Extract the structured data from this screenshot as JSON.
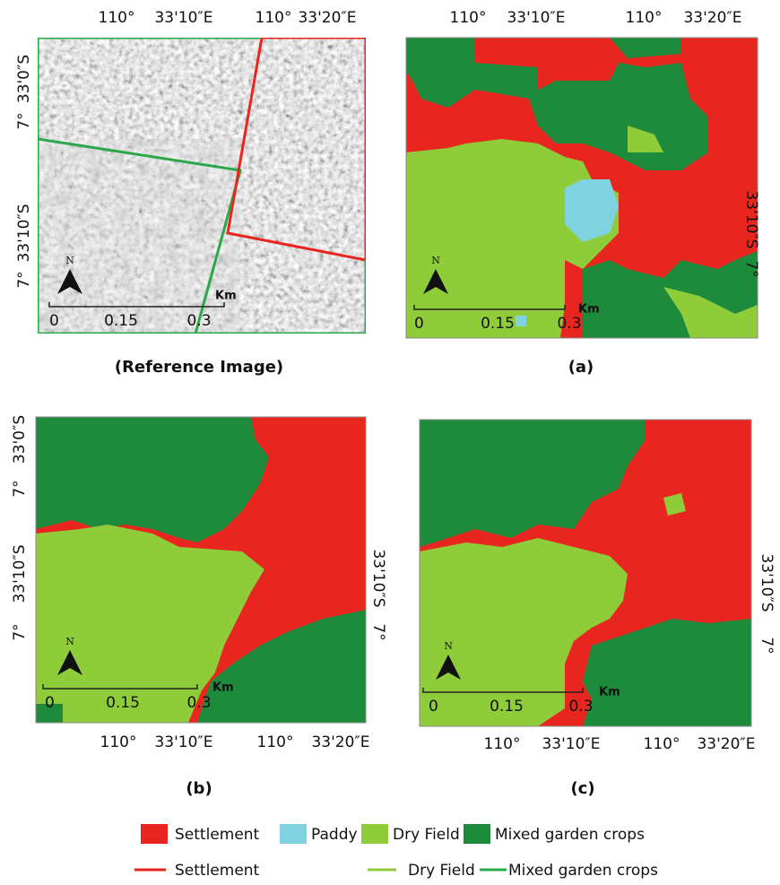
{
  "panels": [
    {
      "caption": "(Reference Image)",
      "top": [
        "110°",
        "33'10″E",
        "110°",
        "33'20″E"
      ],
      "left": [
        "33'0″S",
        "7°",
        "33'10″S",
        "7°"
      ],
      "scale": [
        "0",
        "0.15",
        "0.3"
      ],
      "unit": "Km",
      "north": "N"
    },
    {
      "caption": "(a)",
      "top": [
        "110°",
        "33'10″E",
        "110°",
        "33'20″E"
      ],
      "right": [
        "33'10″S",
        "7°"
      ],
      "scale": [
        "0",
        "0.15",
        "0.3"
      ],
      "unit": "Km",
      "north": "N"
    },
    {
      "caption": "(b)",
      "left": [
        "33'0″S",
        "7°",
        "33'10″S",
        "7°"
      ],
      "right": [
        "33'10″S",
        "7°"
      ],
      "bottom": [
        "110°",
        "33'10″E",
        "110°",
        "33'20″E"
      ],
      "scale": [
        "0",
        "0.15",
        "0.3"
      ],
      "unit": "Km",
      "north": "N"
    },
    {
      "caption": "(c)",
      "right": [
        "33'10″S",
        "7°"
      ],
      "bottom": [
        "110°",
        "33'10″E",
        "110°",
        "33'20″E"
      ],
      "scale": [
        "0",
        "0.15",
        "0.3"
      ],
      "unit": "Km",
      "north": "N"
    }
  ],
  "legend": {
    "fills": [
      {
        "label": "Settlement",
        "color": "#e8261f"
      },
      {
        "label": "Paddy",
        "color": "#7fd3e0"
      },
      {
        "label": "Dry Field",
        "color": "#8fcc3a"
      },
      {
        "label": "Mixed garden crops",
        "color": "#1e8a3c"
      }
    ],
    "lines": [
      {
        "label": "Settlement",
        "color": "#e8261f"
      },
      {
        "label": "Dry Field",
        "color": "#8fcc3a"
      },
      {
        "label": "Mixed garden crops",
        "color": "#2aa84a"
      }
    ]
  }
}
